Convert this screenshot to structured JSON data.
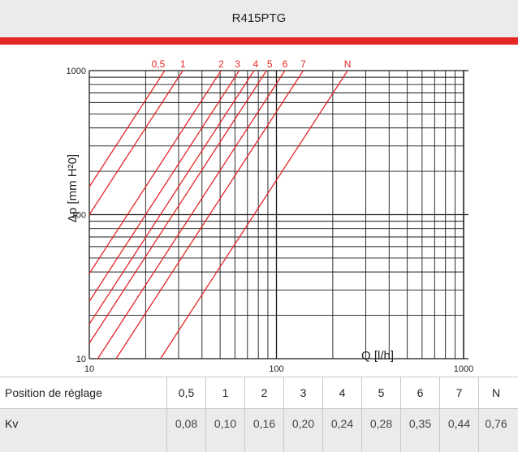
{
  "header": {
    "title": "R415PTG"
  },
  "chart_data": {
    "type": "line",
    "xscale": "log",
    "yscale": "log",
    "xlim": [
      10,
      1000
    ],
    "ylim": [
      10,
      1000
    ],
    "xticks": [
      10,
      100,
      1000
    ],
    "yticks": [
      10,
      100,
      1000
    ],
    "xtick_labels": [
      "10",
      "100",
      "1000"
    ],
    "ytick_labels": [
      "10",
      "100",
      "1000"
    ],
    "xlabel": "Q [l/h]",
    "ylabel": "Δp [mm H²0]",
    "grid": true,
    "line_color": "#e42626",
    "series": [
      {
        "name": "0,5",
        "kv": 0.08,
        "x": [
          10,
          25.3
        ],
        "y": [
          156,
          1000
        ]
      },
      {
        "name": "1",
        "kv": 0.1,
        "x": [
          10,
          31.6
        ],
        "y": [
          100,
          1000
        ]
      },
      {
        "name": "2",
        "kv": 0.16,
        "x": [
          10,
          50.6
        ],
        "y": [
          39,
          1000
        ]
      },
      {
        "name": "3",
        "kv": 0.2,
        "x": [
          10,
          63.2
        ],
        "y": [
          25,
          1000
        ]
      },
      {
        "name": "4",
        "kv": 0.24,
        "x": [
          10,
          75.9
        ],
        "y": [
          17.4,
          1000
        ]
      },
      {
        "name": "5",
        "kv": 0.28,
        "x": [
          10,
          88.5
        ],
        "y": [
          12.8,
          1000
        ]
      },
      {
        "name": "6",
        "kv": 0.35,
        "x": [
          11.1,
          111
        ],
        "y": [
          10,
          1000
        ]
      },
      {
        "name": "7",
        "kv": 0.44,
        "x": [
          13.9,
          139
        ],
        "y": [
          10,
          1000
        ]
      },
      {
        "name": "N",
        "kv": 0.76,
        "x": [
          24,
          240
        ],
        "y": [
          10,
          1000
        ]
      }
    ]
  },
  "table": {
    "row1_label": "Position de réglage",
    "row2_label": "Kv",
    "positions": [
      "0,5",
      "1",
      "2",
      "3",
      "4",
      "5",
      "6",
      "7",
      "N"
    ],
    "kv_values": [
      "0,08",
      "0,10",
      "0,16",
      "0,20",
      "0,24",
      "0,28",
      "0,35",
      "0,44",
      "0,76"
    ]
  }
}
